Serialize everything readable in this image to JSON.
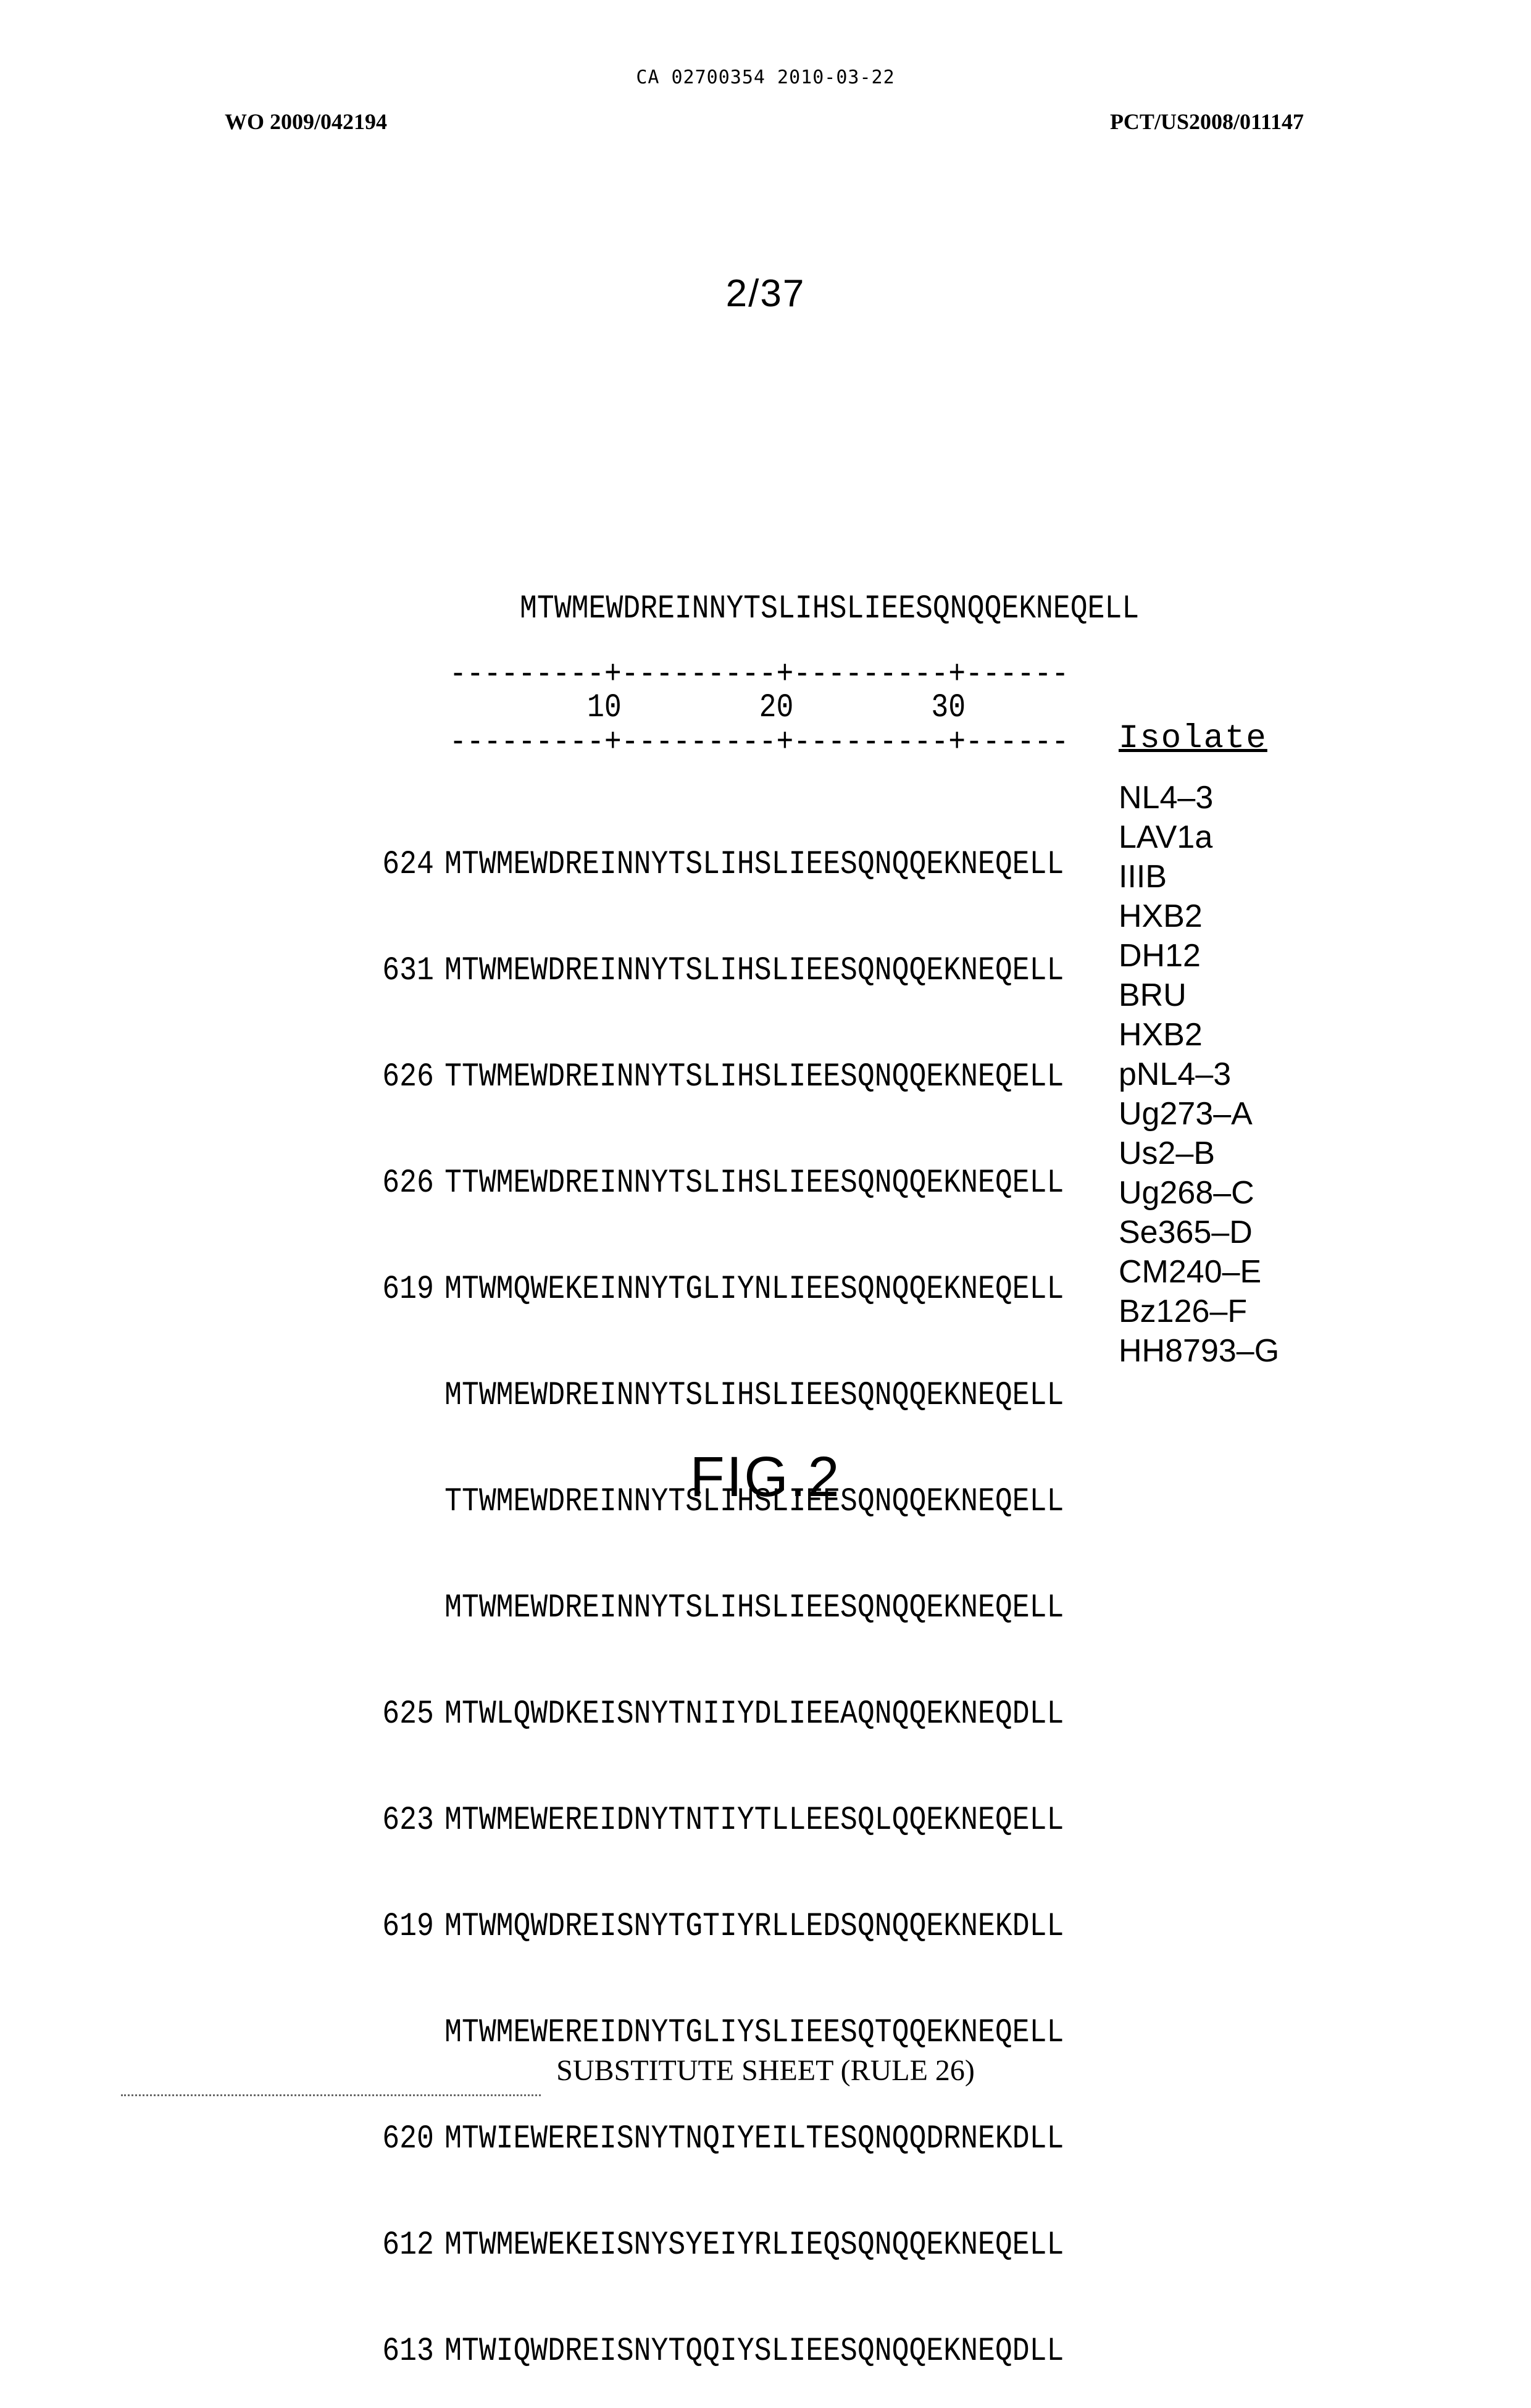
{
  "header": {
    "center": "CA 02700354 2010-03-22",
    "left": "WO 2009/042194",
    "right": "PCT/US2008/011147"
  },
  "sheet_number": "2/37",
  "consensus": "MTWMEWDREINNYTSLIHSLIEESQNQQEKNEQELL",
  "ruler": {
    "line": "---------+---------+---------+------",
    "ticks": "        10        20        30",
    "isolate_header": "Isolate"
  },
  "alignment": [
    {
      "position": "624",
      "sequence": "MTWMEWDREINNYTSLIHSLIEESQNQQEKNEQELL",
      "isolate": "NL4–3"
    },
    {
      "position": "631",
      "sequence": "MTWMEWDREINNYTSLIHSLIEESQNQQEKNEQELL",
      "isolate": "LAV1a"
    },
    {
      "position": "626",
      "sequence": "TTWMEWDREINNYTSLIHSLIEESQNQQEKNEQELL",
      "isolate": "IIIB"
    },
    {
      "position": "626",
      "sequence": "TTWMEWDREINNYTSLIHSLIEESQNQQEKNEQELL",
      "isolate": "HXB2"
    },
    {
      "position": "619",
      "sequence": "MTWMQWEKEINNYTGLIYNLIEESQNQQEKNEQELL",
      "isolate": "DH12"
    },
    {
      "position": "",
      "sequence": "MTWMEWDREINNYTSLIHSLIEESQNQQEKNEQELL",
      "isolate": "BRU"
    },
    {
      "position": "",
      "sequence": "TTWMEWDREINNYTSLIHSLIEESQNQQEKNEQELL",
      "isolate": "HXB2"
    },
    {
      "position": "",
      "sequence": "MTWMEWDREINNYTSLIHSLIEESQNQQEKNEQELL",
      "isolate": "pNL4–3"
    },
    {
      "position": "625",
      "sequence": "MTWLQWDKEISNYTNIIYDLIEEAQNQQEKNEQDLL",
      "isolate": "Ug273–A"
    },
    {
      "position": "623",
      "sequence": "MTWMEWEREIDNYTNTIYTLLEESQLQQEKNEQELL",
      "isolate": "Us2–B"
    },
    {
      "position": "619",
      "sequence": "MTWMQWDREISNYTGTIYRLLEDSQNQQEKNEKDLL",
      "isolate": "Ug268–C"
    },
    {
      "position": "",
      "sequence": "MTWMEWEREIDNYTGLIYSLIEESQTQQEKNEQELL",
      "isolate": "Se365–D"
    },
    {
      "position": "620",
      "sequence": "MTWIEWEREISNYTNQIYEILTESQNQQDRNEKDLL",
      "isolate": "CM240–E"
    },
    {
      "position": "612",
      "sequence": "MTWMEWEKEISNYSYEIYRLIEQSQNQQEKNEQELL",
      "isolate": "Bz126–F"
    },
    {
      "position": "613",
      "sequence": "MTWIQWDREISNYTQQIYSLIEESQNQQEKNEQDLL",
      "isolate": "HH8793–G"
    }
  ],
  "figure_label": "FIG.2",
  "footer": "SUBSTITUTE SHEET (RULE 26)"
}
